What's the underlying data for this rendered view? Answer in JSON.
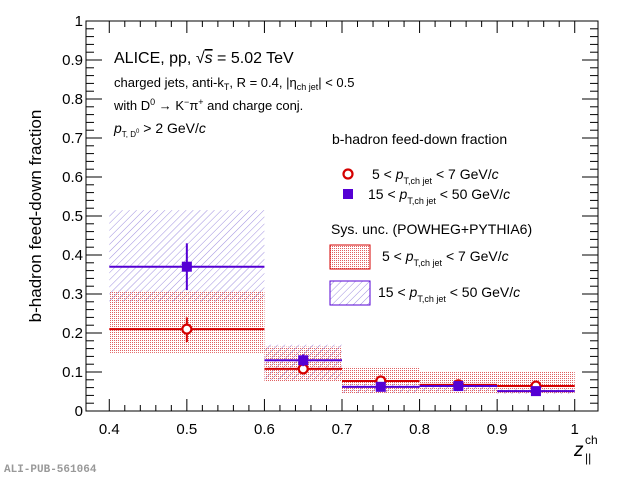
{
  "chart_data": {
    "type": "scatter",
    "title": "",
    "xlabel": "z",
    "xlabel_sup": "ch",
    "xlabel_sub": "||",
    "ylabel": "b-hadron feed-down fraction",
    "xlim": [
      0.37,
      1.03
    ],
    "ylim": [
      0,
      1
    ],
    "xticks": [
      0.4,
      0.5,
      0.6,
      0.7,
      0.8,
      0.9,
      1
    ],
    "xtick_labels": [
      "0.4",
      "0.5",
      "0.6",
      "0.7",
      "0.8",
      "0.9",
      "1"
    ],
    "yticks": [
      0,
      0.1,
      0.2,
      0.3,
      0.4,
      0.5,
      0.6,
      0.7,
      0.8,
      0.9,
      1
    ],
    "ytick_labels": [
      "0",
      "0.1",
      "0.2",
      "0.3",
      "0.4",
      "0.5",
      "0.6",
      "0.7",
      "0.8",
      "0.9",
      "1"
    ],
    "grid": false,
    "annotations": {
      "line1_pre": "ALICE, pp, ",
      "line1_sqrt": "√",
      "line1_s": "s",
      "line1_post": " = 5.02 TeV",
      "line2": "charged jets, anti-k",
      "line2_sub": "T",
      "line2_r": ", R = 0.4, |η",
      "line2_eta_sub": "ch jet",
      "line2_end": "| < 0.5",
      "line3_pre": "with D",
      "line3_sup": "0",
      "line3_mid": " → K",
      "line3_sup2": "−",
      "line3_pi": "π",
      "line3_sup3": "+",
      "line3_end": " and charge conj.",
      "line4_p": "p",
      "line4_sub": "T, D",
      "line4_sub_sup": "0",
      "line4_end": " > 2 GeV/",
      "line4_c": "c"
    },
    "legend": {
      "placement": "right",
      "title1": "b-hadron feed-down fraction",
      "title2": "Sys. unc. (POWHEG+PYTHIA6)",
      "entry_low_pre": "5 < ",
      "entry_high_pre": "15 < ",
      "p": "p",
      "p_sub": "T,ch jet",
      "entry_low_post": " <   7 GeV/",
      "entry_high_post": " < 50 GeV/",
      "c": "c"
    },
    "series": [
      {
        "name": "5 < pT,ch jet < 7 GeV/c",
        "color": "#d40000",
        "marker": "open-circle",
        "points": [
          {
            "x": 0.5,
            "xlo": 0.4,
            "xhi": 0.6,
            "y": 0.21,
            "stat_lo": 0.177,
            "stat_hi": 0.24,
            "sys_lo": 0.149,
            "sys_hi": 0.308
          },
          {
            "x": 0.65,
            "xlo": 0.6,
            "xhi": 0.7,
            "y": 0.108,
            "stat_lo": 0.1,
            "stat_hi": 0.116,
            "sys_lo": 0.075,
            "sys_hi": 0.165
          },
          {
            "x": 0.75,
            "xlo": 0.7,
            "xhi": 0.8,
            "y": 0.077,
            "stat_lo": 0.072,
            "stat_hi": 0.082,
            "sys_lo": 0.046,
            "sys_hi": 0.113
          },
          {
            "x": 0.85,
            "xlo": 0.8,
            "xhi": 0.9,
            "y": 0.067,
            "stat_lo": 0.063,
            "stat_hi": 0.071,
            "sys_lo": 0.046,
            "sys_hi": 0.1
          },
          {
            "x": 0.95,
            "xlo": 0.9,
            "xhi": 1.0,
            "y": 0.064,
            "stat_lo": 0.06,
            "stat_hi": 0.068,
            "sys_lo": 0.046,
            "sys_hi": 0.1
          }
        ]
      },
      {
        "name": "15 < pT,ch jet < 50 GeV/c",
        "color": "#5500d4",
        "marker": "filled-square",
        "points": [
          {
            "x": 0.5,
            "xlo": 0.4,
            "xhi": 0.6,
            "y": 0.37,
            "stat_lo": 0.31,
            "stat_hi": 0.43,
            "sys_lo": 0.28,
            "sys_hi": 0.515
          },
          {
            "x": 0.65,
            "xlo": 0.6,
            "xhi": 0.7,
            "y": 0.13,
            "stat_lo": 0.115,
            "stat_hi": 0.145,
            "sys_lo": 0.08,
            "sys_hi": 0.17
          },
          {
            "x": 0.75,
            "xlo": 0.7,
            "xhi": 0.8,
            "y": 0.062,
            "stat_lo": 0.056,
            "stat_hi": 0.068,
            "sys_lo": 0.046,
            "sys_hi": 0.07
          },
          {
            "x": 0.85,
            "xlo": 0.8,
            "xhi": 0.9,
            "y": 0.064,
            "stat_lo": 0.058,
            "stat_hi": 0.07,
            "sys_lo": 0.05,
            "sys_hi": 0.068
          },
          {
            "x": 0.95,
            "xlo": 0.9,
            "xhi": 1.0,
            "y": 0.051,
            "stat_lo": 0.045,
            "stat_hi": 0.057,
            "sys_lo": 0.044,
            "sys_hi": 0.056
          }
        ]
      }
    ]
  },
  "footer": {
    "label": "ALI-PUB-561064"
  }
}
